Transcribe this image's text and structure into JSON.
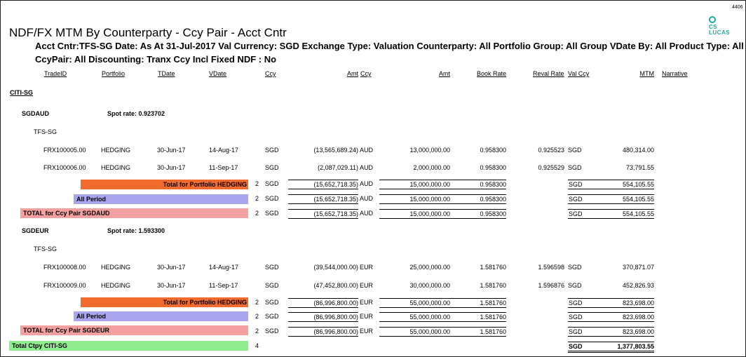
{
  "page_number": "4406",
  "logo": {
    "line1": "CS",
    "line2": "LUCAS"
  },
  "report": {
    "title": "NDF/FX MTM By Counterparty - Ccy Pair - Acct Cntr",
    "params_line1": "Acct Cntr:TFS-SG Date: As At  31-Jul-2017 Val Currency: SGD Exchange Type: Valuation Counterparty: All Portfolio Group: All Group VDate By: All Product Type: All",
    "params_line2": "CcyPair: All  Discounting: Tranx Ccy  Incl Fixed NDF : No"
  },
  "headers": {
    "tradeid": "TradeID",
    "portfolio": "Portfolio",
    "tdate": "TDate",
    "vdate": "VDate",
    "ccy": "Ccy",
    "amt1": "Amt",
    "ccy2": "Ccy",
    "amt2": "Amt",
    "book_rate": "Book Rate",
    "reval_rate": "Reval Rate",
    "val_ccy": "Val Ccy",
    "mtm": "MTM",
    "narrative": "Narrative"
  },
  "counterparty": "CITI-SG",
  "groups": [
    {
      "pair": "SGDAUD",
      "spot": "Spot rate: 0.923702",
      "acct": "TFS-SG",
      "trades": [
        {
          "id": "FRX100005.00",
          "portfolio": "HEDGING",
          "tdate": "30-Jun-17",
          "vdate": "14-Aug-17",
          "ccy": "SGD",
          "amt1": "(13,565,689.24)",
          "ccy2": "AUD",
          "amt2": "13,000,000.00",
          "book": "0.958300",
          "reval": "0.925523",
          "valccy": "SGD",
          "mtm": "480,314.00"
        },
        {
          "id": "FRX100006.00",
          "portfolio": "HEDGING",
          "tdate": "30-Jun-17",
          "vdate": "11-Sep-17",
          "ccy": "SGD",
          "amt1": "(2,087,029.11)",
          "ccy2": "AUD",
          "amt2": "2,000,000.00",
          "book": "0.958300",
          "reval": "0.925529",
          "valccy": "SGD",
          "mtm": "73,791.55"
        }
      ],
      "totals": [
        {
          "label": "Total for Portfolio HEDGING",
          "count": "2",
          "ccy": "SGD",
          "amt1": "(15,652,718.35)",
          "ccy2": "AUD",
          "amt2": "15,000,000.00",
          "book": "0.958300",
          "valccy": "SGD",
          "mtm": "554,105.55"
        },
        {
          "label": "All Period",
          "count": "2",
          "ccy": "SGD",
          "amt1": "(15,652,718.35)",
          "ccy2": "AUD",
          "amt2": "15,000,000.00",
          "book": "0.958300",
          "valccy": "SGD",
          "mtm": "554,105.55"
        },
        {
          "label": "TOTAL for Ccy Pair SGDAUD",
          "count": "2",
          "ccy": "SGD",
          "amt1": "(15,652,718.35)",
          "ccy2": "AUD",
          "amt2": "15,000,000.00",
          "book": "0.958300",
          "valccy": "SGD",
          "mtm": "554,105.55"
        }
      ]
    },
    {
      "pair": "SGDEUR",
      "spot": "Spot rate: 1.593300",
      "acct": "TFS-SG",
      "trades": [
        {
          "id": "FRX100008.00",
          "portfolio": "HEDGING",
          "tdate": "30-Jun-17",
          "vdate": "14-Aug-17",
          "ccy": "SGD",
          "amt1": "(39,544,000.00)",
          "ccy2": "EUR",
          "amt2": "25,000,000.00",
          "book": "1.581760",
          "reval": "1.596598",
          "valccy": "SGD",
          "mtm": "370,871.07"
        },
        {
          "id": "FRX100009.00",
          "portfolio": "HEDGING",
          "tdate": "30-Jun-17",
          "vdate": "11-Sep-17",
          "ccy": "SGD",
          "amt1": "(47,452,800.00)",
          "ccy2": "EUR",
          "amt2": "30,000,000.00",
          "book": "1.581760",
          "reval": "1.596876",
          "valccy": "SGD",
          "mtm": "452,826.93"
        }
      ],
      "totals": [
        {
          "label": "Total for Portfolio HEDGING",
          "count": "2",
          "ccy": "SGD",
          "amt1": "(86,996,800.00)",
          "ccy2": "EUR",
          "amt2": "55,000,000.00",
          "book": "1.581760",
          "valccy": "SGD",
          "mtm": "823,698.00"
        },
        {
          "label": "All Period",
          "count": "2",
          "ccy": "SGD",
          "amt1": "(86,996,800.00)",
          "ccy2": "EUR",
          "amt2": "55,000,000.00",
          "book": "1.581760",
          "valccy": "SGD",
          "mtm": "823,698.00"
        },
        {
          "label": "TOTAL for Ccy Pair SGDEUR",
          "count": "2",
          "ccy": "SGD",
          "amt1": "(86,996,800.00)",
          "ccy2": "EUR",
          "amt2": "55,000,000.00",
          "book": "1.581760",
          "valccy": "SGD",
          "mtm": "823,698.00"
        }
      ]
    }
  ],
  "ctpy_total": {
    "label": "Total Ctpy CITI-SG",
    "count": "4",
    "valccy": "SGD",
    "mtm": "1,377,803.55"
  },
  "colors": {
    "portfolio_total": "#f26b2e",
    "all_period": "#a9a6ef",
    "ccy_pair_total": "#f5a0a0",
    "ctpy_total": "#8fec8f",
    "logo": "#1aa9a0"
  }
}
